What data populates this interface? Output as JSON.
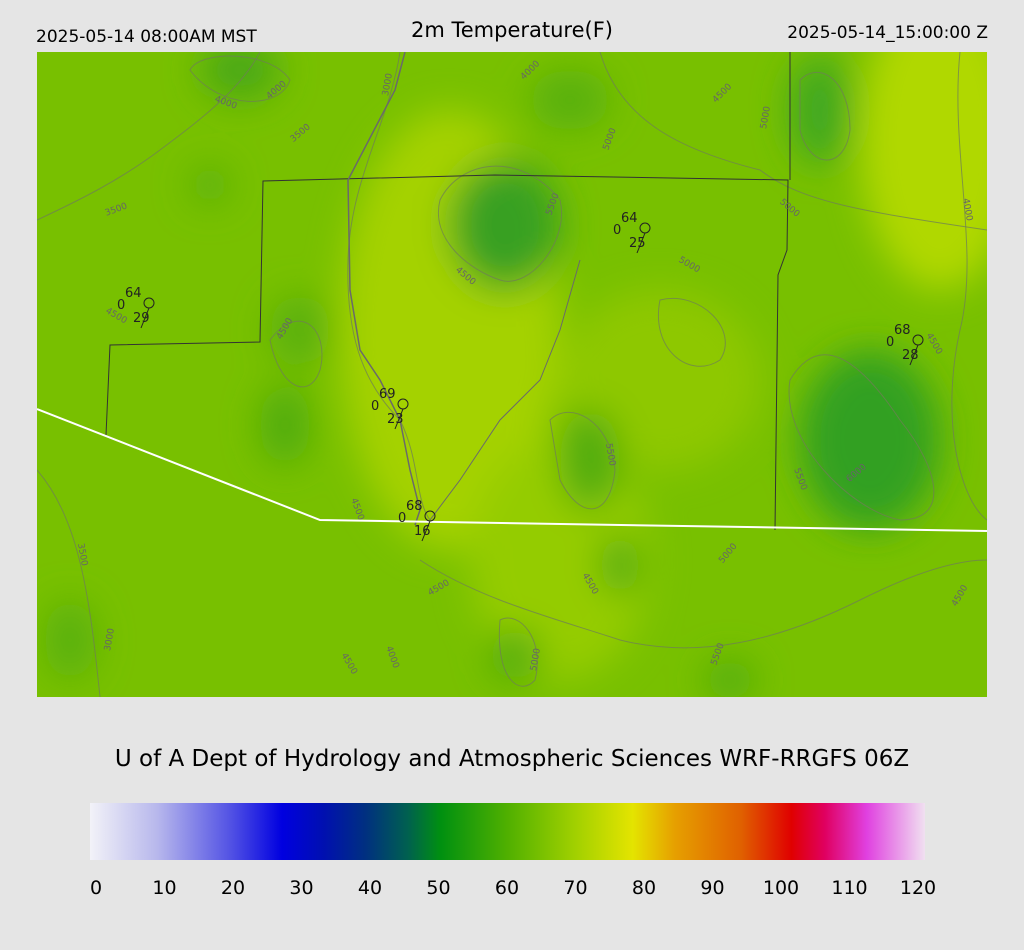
{
  "header": {
    "valid_local": "2025-05-14 08:00AM MST",
    "title": "2m Temperature(F)",
    "valid_utc": "2025-05-14_15:00:00 Z"
  },
  "map": {
    "stations": [
      {
        "temperature": 64,
        "wind": 0,
        "dewpoint": 29
      },
      {
        "temperature": 64,
        "wind": 0,
        "dewpoint": 25
      },
      {
        "temperature": 68,
        "wind": 0,
        "dewpoint": 28
      },
      {
        "temperature": 69,
        "wind": 0,
        "dewpoint": 23
      },
      {
        "temperature": 68,
        "wind": 0,
        "dewpoint": 16
      }
    ],
    "contour_labels": [
      "4000",
      "4000",
      "3500",
      "3000",
      "4000",
      "4500",
      "5000",
      "5000",
      "3500",
      "5500",
      "4500",
      "5000",
      "5000",
      "4000",
      "4500",
      "4500",
      "4500",
      "5500",
      "5500",
      "6000",
      "4500",
      "3500",
      "5000",
      "4500",
      "4500",
      "4500",
      "3000",
      "4000",
      "4500",
      "5000",
      "5500"
    ]
  },
  "footer": {
    "credit": "U of A Dept of Hydrology and Atmospheric Sciences WRF-RRGFS 06Z"
  },
  "colorbar": {
    "ticks": [
      0,
      10,
      20,
      30,
      40,
      50,
      60,
      70,
      80,
      90,
      100,
      110,
      120
    ]
  }
}
